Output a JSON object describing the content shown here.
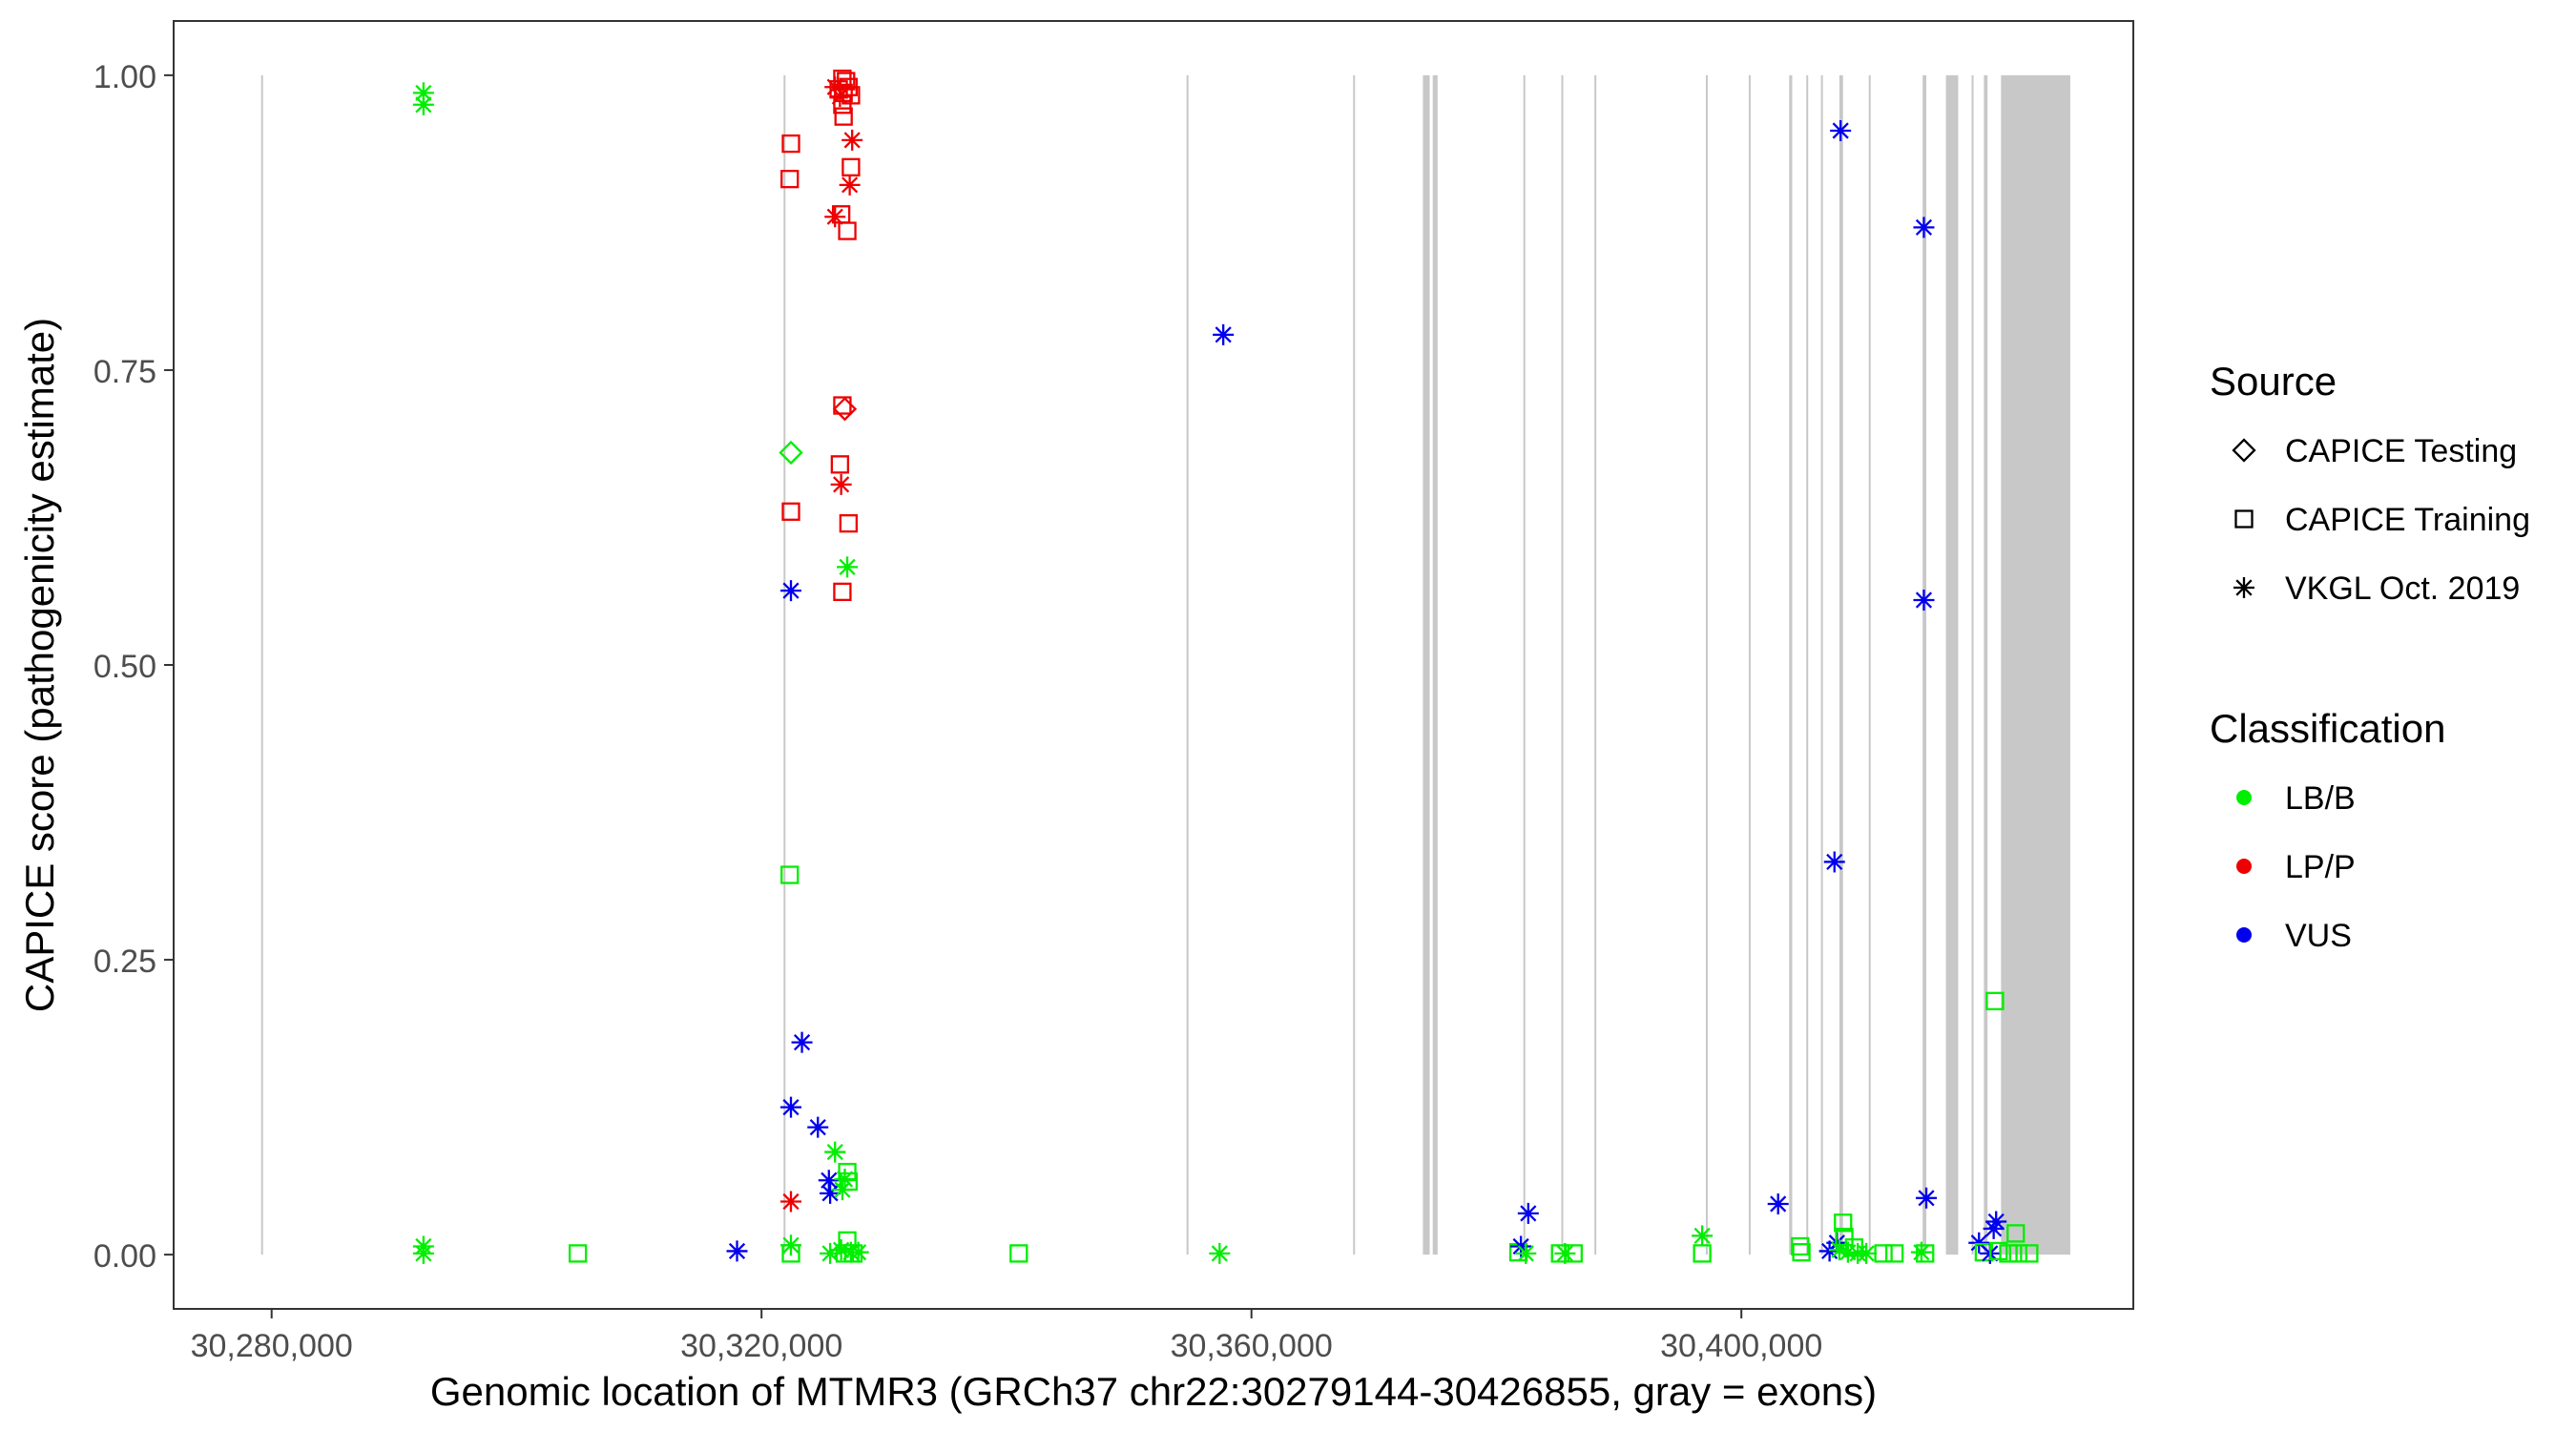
{
  "chart_data": {
    "type": "scatter",
    "xlabel": "Genomic location of MTMR3 (GRCh37 chr22:30279144-30426855, gray = exons)",
    "ylabel": "CAPICE score (pathogenicity estimate)",
    "xlim": [
      30272000,
      30432000
    ],
    "ylim": [
      -0.046,
      1.046
    ],
    "x_ticks": [
      30280000,
      30320000,
      30360000,
      30400000
    ],
    "x_tick_labels": [
      "30,280,000",
      "30,320,000",
      "30,360,000",
      "30,400,000"
    ],
    "y_ticks": [
      0,
      0.25,
      0.5,
      0.75,
      1.0
    ],
    "y_tick_labels": [
      "0.00",
      "0.25",
      "0.50",
      "0.75",
      "1.00"
    ],
    "grid": false,
    "legend_position": "right",
    "legends": {
      "source": {
        "title": "Source",
        "entries": [
          {
            "label": "CAPICE Testing",
            "shape": "diamond"
          },
          {
            "label": "CAPICE Training",
            "shape": "square"
          },
          {
            "label": "VKGL Oct. 2019",
            "shape": "asterisk"
          }
        ]
      },
      "classification": {
        "title": "Classification",
        "entries": [
          {
            "label": "LB/B",
            "color": "#00ee00"
          },
          {
            "label": "LP/P",
            "color": "#ee0000"
          },
          {
            "label": "VUS",
            "color": "#0000ee"
          }
        ]
      }
    },
    "colors": {
      "LB/B": "#00ee00",
      "LP/P": "#ee0000",
      "VUS": "#0000ee",
      "exon": "#c8c8c8"
    },
    "exons": [
      [
        30279144,
        30279250
      ],
      [
        30321800,
        30321950
      ],
      [
        30354700,
        30354830
      ],
      [
        30368300,
        30368420
      ],
      [
        30374000,
        30374550
      ],
      [
        30374800,
        30375200
      ],
      [
        30382200,
        30382330
      ],
      [
        30385300,
        30385430
      ],
      [
        30388000,
        30388130
      ],
      [
        30397100,
        30397230
      ],
      [
        30400600,
        30400730
      ],
      [
        30403900,
        30404150
      ],
      [
        30405300,
        30405430
      ],
      [
        30406500,
        30406630
      ],
      [
        30408000,
        30408300
      ],
      [
        30410400,
        30410530
      ],
      [
        30414800,
        30415100
      ],
      [
        30416700,
        30417700
      ],
      [
        30418800,
        30418950
      ],
      [
        30419800,
        30420100
      ],
      [
        30421200,
        30426855
      ]
    ],
    "points": [
      {
        "x": 30292400,
        "y": 0.985,
        "source": "VKGL Oct. 2019",
        "class": "LB/B"
      },
      {
        "x": 30292400,
        "y": 0.975,
        "source": "VKGL Oct. 2019",
        "class": "LB/B"
      },
      {
        "x": 30292400,
        "y": 0.007,
        "source": "VKGL Oct. 2019",
        "class": "LB/B"
      },
      {
        "x": 30292400,
        "y": 0.001,
        "source": "VKGL Oct. 2019",
        "class": "LB/B"
      },
      {
        "x": 30305000,
        "y": 0.001,
        "source": "CAPICE Training",
        "class": "LB/B"
      },
      {
        "x": 30318000,
        "y": 0.003,
        "source": "VKGL Oct. 2019",
        "class": "VUS"
      },
      {
        "x": 30322400,
        "y": 0.942,
        "source": "CAPICE Training",
        "class": "LP/P"
      },
      {
        "x": 30322300,
        "y": 0.912,
        "source": "CAPICE Training",
        "class": "LP/P"
      },
      {
        "x": 30322400,
        "y": 0.68,
        "source": "CAPICE Testing",
        "class": "LB/B"
      },
      {
        "x": 30322400,
        "y": 0.63,
        "source": "CAPICE Training",
        "class": "LP/P"
      },
      {
        "x": 30322400,
        "y": 0.563,
        "source": "VKGL Oct. 2019",
        "class": "VUS"
      },
      {
        "x": 30322300,
        "y": 0.322,
        "source": "CAPICE Training",
        "class": "LB/B"
      },
      {
        "x": 30323300,
        "y": 0.18,
        "source": "VKGL Oct. 2019",
        "class": "VUS"
      },
      {
        "x": 30322400,
        "y": 0.125,
        "source": "VKGL Oct. 2019",
        "class": "VUS"
      },
      {
        "x": 30322400,
        "y": 0.045,
        "source": "VKGL Oct. 2019",
        "class": "LP/P"
      },
      {
        "x": 30322400,
        "y": 0.008,
        "source": "VKGL Oct. 2019",
        "class": "LB/B"
      },
      {
        "x": 30322400,
        "y": 0.001,
        "source": "CAPICE Training",
        "class": "LB/B"
      },
      {
        "x": 30324600,
        "y": 0.108,
        "source": "VKGL Oct. 2019",
        "class": "VUS"
      },
      {
        "x": 30325600,
        "y": 0.001,
        "source": "VKGL Oct. 2019",
        "class": "LB/B"
      },
      {
        "x": 30325500,
        "y": 0.063,
        "source": "VKGL Oct. 2019",
        "class": "VUS"
      },
      {
        "x": 30325600,
        "y": 0.052,
        "source": "VKGL Oct. 2019",
        "class": "VUS"
      },
      {
        "x": 30326000,
        "y": 0.087,
        "source": "VKGL Oct. 2019",
        "class": "LB/B"
      },
      {
        "x": 30326800,
        "y": 0.064,
        "source": "VKGL Oct. 2019",
        "class": "LB/B"
      },
      {
        "x": 30326600,
        "y": 0.055,
        "source": "VKGL Oct. 2019",
        "class": "LB/B"
      },
      {
        "x": 30327000,
        "y": 0.07,
        "source": "CAPICE Training",
        "class": "LB/B"
      },
      {
        "x": 30327100,
        "y": 0.062,
        "source": "CAPICE Training",
        "class": "LB/B"
      },
      {
        "x": 30327000,
        "y": 0.012,
        "source": "CAPICE Training",
        "class": "LB/B"
      },
      {
        "x": 30326500,
        "y": 0.004,
        "source": "VKGL Oct. 2019",
        "class": "LB/B"
      },
      {
        "x": 30327300,
        "y": 0.002,
        "source": "VKGL Oct. 2019",
        "class": "LB/B"
      },
      {
        "x": 30326800,
        "y": 0.001,
        "source": "CAPICE Training",
        "class": "LB/B"
      },
      {
        "x": 30327500,
        "y": 0.001,
        "source": "CAPICE Training",
        "class": "LB/B"
      },
      {
        "x": 30327900,
        "y": 0.002,
        "source": "VKGL Oct. 2019",
        "class": "LB/B"
      },
      {
        "x": 30326600,
        "y": 0.997,
        "source": "CAPICE Training",
        "class": "LP/P"
      },
      {
        "x": 30326900,
        "y": 0.995,
        "source": "CAPICE Training",
        "class": "LP/P"
      },
      {
        "x": 30327100,
        "y": 0.99,
        "source": "CAPICE Training",
        "class": "LP/P"
      },
      {
        "x": 30326300,
        "y": 0.988,
        "source": "CAPICE Training",
        "class": "LP/P"
      },
      {
        "x": 30326700,
        "y": 0.985,
        "source": "CAPICE Training",
        "class": "LP/P"
      },
      {
        "x": 30327300,
        "y": 0.983,
        "source": "CAPICE Training",
        "class": "LP/P"
      },
      {
        "x": 30326000,
        "y": 0.99,
        "source": "VKGL Oct. 2019",
        "class": "LP/P"
      },
      {
        "x": 30326400,
        "y": 0.982,
        "source": "VKGL Oct. 2019",
        "class": "LP/P"
      },
      {
        "x": 30326600,
        "y": 0.975,
        "source": "CAPICE Training",
        "class": "LP/P"
      },
      {
        "x": 30326700,
        "y": 0.965,
        "source": "CAPICE Training",
        "class": "LP/P"
      },
      {
        "x": 30327400,
        "y": 0.945,
        "source": "VKGL Oct. 2019",
        "class": "LP/P"
      },
      {
        "x": 30327300,
        "y": 0.922,
        "source": "CAPICE Training",
        "class": "LP/P"
      },
      {
        "x": 30327200,
        "y": 0.907,
        "source": "VKGL Oct. 2019",
        "class": "LP/P"
      },
      {
        "x": 30326500,
        "y": 0.882,
        "source": "CAPICE Training",
        "class": "LP/P"
      },
      {
        "x": 30326000,
        "y": 0.88,
        "source": "VKGL Oct. 2019",
        "class": "LP/P"
      },
      {
        "x": 30327000,
        "y": 0.868,
        "source": "CAPICE Training",
        "class": "LP/P"
      },
      {
        "x": 30326600,
        "y": 0.72,
        "source": "CAPICE Training",
        "class": "LP/P"
      },
      {
        "x": 30326800,
        "y": 0.717,
        "source": "CAPICE Testing",
        "class": "LP/P"
      },
      {
        "x": 30326400,
        "y": 0.67,
        "source": "CAPICE Training",
        "class": "LP/P"
      },
      {
        "x": 30326500,
        "y": 0.653,
        "source": "VKGL Oct. 2019",
        "class": "LP/P"
      },
      {
        "x": 30327100,
        "y": 0.62,
        "source": "CAPICE Training",
        "class": "LP/P"
      },
      {
        "x": 30327000,
        "y": 0.583,
        "source": "VKGL Oct. 2019",
        "class": "LB/B"
      },
      {
        "x": 30326600,
        "y": 0.562,
        "source": "CAPICE Training",
        "class": "LP/P"
      },
      {
        "x": 30341000,
        "y": 0.001,
        "source": "CAPICE Training",
        "class": "LB/B"
      },
      {
        "x": 30357700,
        "y": 0.78,
        "source": "VKGL Oct. 2019",
        "class": "VUS"
      },
      {
        "x": 30357400,
        "y": 0.001,
        "source": "VKGL Oct. 2019",
        "class": "LB/B"
      },
      {
        "x": 30381800,
        "y": 0.002,
        "source": "CAPICE Training",
        "class": "LB/B"
      },
      {
        "x": 30382000,
        "y": 0.007,
        "source": "VKGL Oct. 2019",
        "class": "VUS"
      },
      {
        "x": 30382600,
        "y": 0.035,
        "source": "VKGL Oct. 2019",
        "class": "VUS"
      },
      {
        "x": 30382400,
        "y": 0.001,
        "source": "VKGL Oct. 2019",
        "class": "LB/B"
      },
      {
        "x": 30385200,
        "y": 0.001,
        "source": "CAPICE Training",
        "class": "LB/B"
      },
      {
        "x": 30385600,
        "y": 0.001,
        "source": "VKGL Oct. 2019",
        "class": "LB/B"
      },
      {
        "x": 30386300,
        "y": 0.001,
        "source": "CAPICE Training",
        "class": "LB/B"
      },
      {
        "x": 30396800,
        "y": 0.016,
        "source": "VKGL Oct. 2019",
        "class": "LB/B"
      },
      {
        "x": 30396800,
        "y": 0.001,
        "source": "CAPICE Training",
        "class": "LB/B"
      },
      {
        "x": 30403000,
        "y": 0.043,
        "source": "VKGL Oct. 2019",
        "class": "VUS"
      },
      {
        "x": 30404800,
        "y": 0.007,
        "source": "CAPICE Training",
        "class": "LB/B"
      },
      {
        "x": 30404900,
        "y": 0.002,
        "source": "CAPICE Training",
        "class": "LB/B"
      },
      {
        "x": 30407600,
        "y": 0.333,
        "source": "VKGL Oct. 2019",
        "class": "VUS"
      },
      {
        "x": 30408100,
        "y": 0.953,
        "source": "VKGL Oct. 2019",
        "class": "VUS"
      },
      {
        "x": 30407200,
        "y": 0.003,
        "source": "VKGL Oct. 2019",
        "class": "VUS"
      },
      {
        "x": 30407800,
        "y": 0.01,
        "source": "VKGL Oct. 2019",
        "class": "VUS"
      },
      {
        "x": 30408300,
        "y": 0.027,
        "source": "CAPICE Training",
        "class": "LB/B"
      },
      {
        "x": 30408400,
        "y": 0.015,
        "source": "CAPICE Training",
        "class": "LB/B"
      },
      {
        "x": 30408000,
        "y": 0.004,
        "source": "VKGL Oct. 2019",
        "class": "LB/B"
      },
      {
        "x": 30408700,
        "y": 0.002,
        "source": "VKGL Oct. 2019",
        "class": "LB/B"
      },
      {
        "x": 30409200,
        "y": 0.006,
        "source": "CAPICE Training",
        "class": "LB/B"
      },
      {
        "x": 30409500,
        "y": 0.001,
        "source": "VKGL Oct. 2019",
        "class": "LB/B"
      },
      {
        "x": 30410200,
        "y": 0.001,
        "source": "VKGL Oct. 2019",
        "class": "LB/B"
      },
      {
        "x": 30411600,
        "y": 0.001,
        "source": "CAPICE Training",
        "class": "LB/B"
      },
      {
        "x": 30412500,
        "y": 0.001,
        "source": "CAPICE Training",
        "class": "LB/B"
      },
      {
        "x": 30414700,
        "y": 0.002,
        "source": "VKGL Oct. 2019",
        "class": "LB/B"
      },
      {
        "x": 30415000,
        "y": 0.001,
        "source": "CAPICE Training",
        "class": "LB/B"
      },
      {
        "x": 30415100,
        "y": 0.048,
        "source": "VKGL Oct. 2019",
        "class": "VUS"
      },
      {
        "x": 30414900,
        "y": 0.555,
        "source": "VKGL Oct. 2019",
        "class": "VUS"
      },
      {
        "x": 30414900,
        "y": 0.871,
        "source": "VKGL Oct. 2019",
        "class": "VUS"
      },
      {
        "x": 30419400,
        "y": 0.01,
        "source": "VKGL Oct. 2019",
        "class": "VUS"
      },
      {
        "x": 30419800,
        "y": 0.002,
        "source": "CAPICE Training",
        "class": "LB/B"
      },
      {
        "x": 30420300,
        "y": 0.001,
        "source": "VKGL Oct. 2019",
        "class": "VUS"
      },
      {
        "x": 30420600,
        "y": 0.022,
        "source": "VKGL Oct. 2019",
        "class": "VUS"
      },
      {
        "x": 30420800,
        "y": 0.028,
        "source": "VKGL Oct. 2019",
        "class": "VUS"
      },
      {
        "x": 30420700,
        "y": 0.215,
        "source": "CAPICE Training",
        "class": "LB/B"
      },
      {
        "x": 30421000,
        "y": 0.003,
        "source": "CAPICE Training",
        "class": "LB/B"
      },
      {
        "x": 30421800,
        "y": 0.001,
        "source": "CAPICE Training",
        "class": "LB/B"
      },
      {
        "x": 30422400,
        "y": 0.018,
        "source": "CAPICE Training",
        "class": "LB/B"
      },
      {
        "x": 30422600,
        "y": 0.001,
        "source": "CAPICE Training",
        "class": "LB/B"
      },
      {
        "x": 30423500,
        "y": 0.001,
        "source": "CAPICE Training",
        "class": "LB/B"
      }
    ]
  }
}
